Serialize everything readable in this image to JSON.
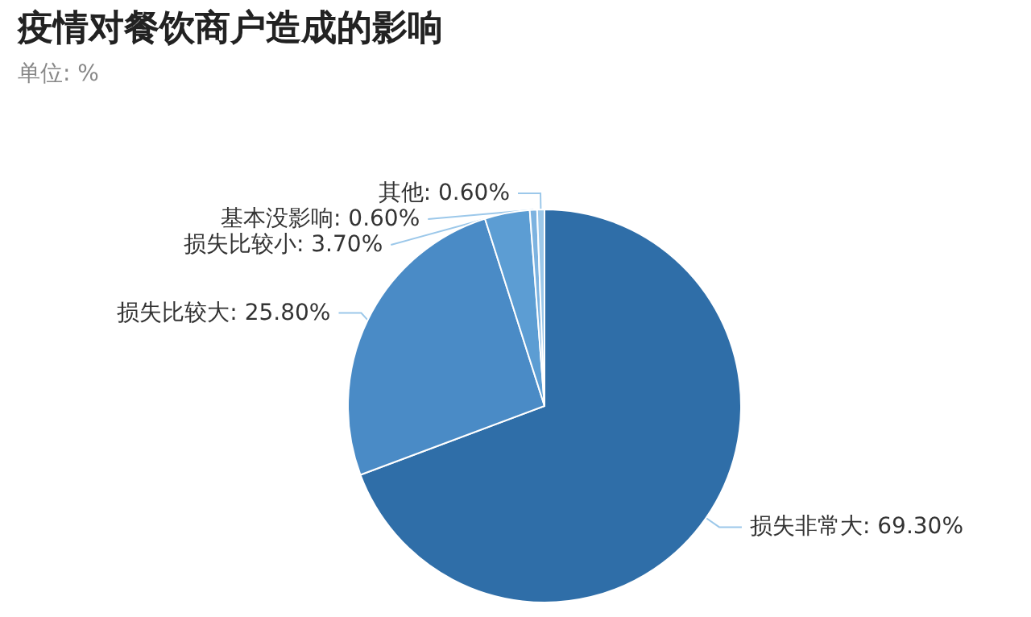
{
  "chart_data": {
    "type": "pie",
    "title": "疫情对餐饮商户造成的影响",
    "subtitle": "单位: %",
    "categories": [
      "损失非常大",
      "损失比较大",
      "损失比较小",
      "基本没影响",
      "其他"
    ],
    "values": [
      69.3,
      25.8,
      3.7,
      0.6,
      0.6
    ],
    "value_labels": [
      "69.30%",
      "25.80%",
      "3.70%",
      "0.60%",
      "0.60%"
    ],
    "colors": [
      "#2f6ea8",
      "#4a8bc6",
      "#5c9dd3",
      "#7db3e0",
      "#9cc8ea"
    ],
    "legend": false
  }
}
